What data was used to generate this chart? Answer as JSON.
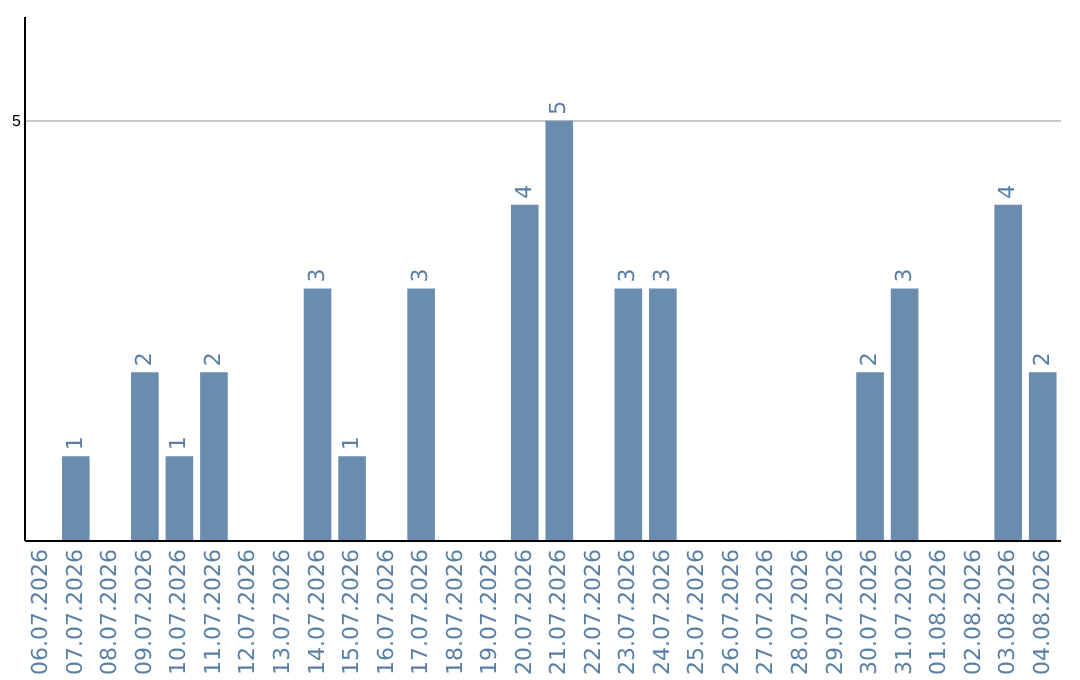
{
  "chart_data": {
    "type": "bar",
    "categories": [
      "06.07.2026",
      "07.07.2026",
      "08.07.2026",
      "09.07.2026",
      "10.07.2026",
      "11.07.2026",
      "12.07.2026",
      "13.07.2026",
      "14.07.2026",
      "15.07.2026",
      "16.07.2026",
      "17.07.2026",
      "18.07.2026",
      "19.07.2026",
      "20.07.2026",
      "21.07.2026",
      "22.07.2026",
      "23.07.2026",
      "24.07.2026",
      "25.07.2026",
      "26.07.2026",
      "27.07.2026",
      "28.07.2026",
      "29.07.2026",
      "30.07.2026",
      "31.07.2026",
      "01.08.2026",
      "02.08.2026",
      "03.08.2026",
      "04.08.2026"
    ],
    "values": [
      0,
      1,
      0,
      2,
      1,
      2,
      0,
      0,
      3,
      1,
      0,
      3,
      0,
      0,
      4,
      5,
      0,
      3,
      3,
      0,
      0,
      0,
      0,
      0,
      2,
      3,
      0,
      0,
      4,
      2
    ],
    "value_labels": [
      null,
      "1",
      null,
      "2",
      "1",
      "2",
      null,
      null,
      "3",
      "1",
      null,
      "3",
      null,
      null,
      "4",
      "5",
      null,
      "3",
      "3",
      null,
      null,
      null,
      null,
      null,
      "2",
      "3",
      null,
      null,
      "4",
      "2"
    ],
    "color": "#6a8caf",
    "ylim": [
      0,
      6.25
    ],
    "yticks": [
      5
    ],
    "grid": "y"
  }
}
